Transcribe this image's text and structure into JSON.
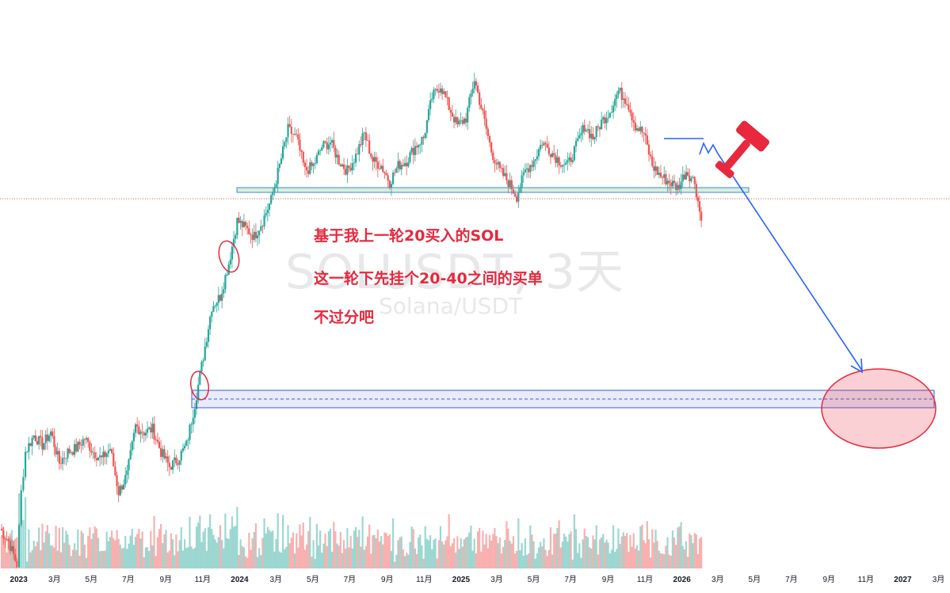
{
  "watermark": {
    "symbol": "SOLUSDT, 3天",
    "name": "Solana/USDT"
  },
  "annotations": [
    "基于我上一轮20买入的SOL",
    "这一轮下先挂个20-40之间的买单",
    "不过分吧"
  ],
  "colors": {
    "up": "#26a69a",
    "down": "#ef5350",
    "annotation": "#e8283c",
    "zone": "#3b5bdb",
    "arrow": "#2962ff"
  },
  "icons": [
    "gavel-icon"
  ],
  "chart_data": {
    "type": "candlestick",
    "symbol": "SOLUSDT",
    "interval": "3天",
    "x_axis": [
      "2023",
      "3月",
      "5月",
      "7月",
      "9月",
      "11月",
      "2024",
      "3月",
      "5月",
      "7月",
      "9月",
      "11月",
      "2025",
      "3月",
      "5月",
      "7月",
      "9月",
      "11月",
      "2026",
      "3月",
      "5月",
      "7月",
      "9月",
      "11月",
      "2027",
      "3月"
    ],
    "x_range": [
      "2022-12-01",
      "2027-03-20"
    ],
    "y_range_approx": [
      8,
      300
    ],
    "series": [
      {
        "values": [
          [
            "2022-12-01",
            12.5
          ],
          [
            "2022-12-15",
            11.5
          ],
          [
            "2022-12-29",
            9.8
          ],
          [
            "2023-01-05",
            16
          ],
          [
            "2023-01-12",
            21
          ],
          [
            "2023-01-26",
            23.5
          ],
          [
            "2023-02-09",
            22
          ],
          [
            "2023-02-23",
            24
          ],
          [
            "2023-03-09",
            19.5
          ],
          [
            "2023-03-23",
            21
          ],
          [
            "2023-04-06",
            21.5
          ],
          [
            "2023-04-20",
            23
          ],
          [
            "2023-05-04",
            21
          ],
          [
            "2023-05-18",
            20
          ],
          [
            "2023-06-01",
            21.5
          ],
          [
            "2023-06-15",
            16
          ],
          [
            "2023-06-29",
            18
          ],
          [
            "2023-07-13",
            25
          ],
          [
            "2023-07-27",
            24
          ],
          [
            "2023-08-10",
            24.5
          ],
          [
            "2023-08-24",
            21
          ],
          [
            "2023-09-07",
            19
          ],
          [
            "2023-09-21",
            20
          ],
          [
            "2023-10-05",
            22
          ],
          [
            "2023-10-19",
            29
          ],
          [
            "2023-11-02",
            40
          ],
          [
            "2023-11-16",
            56
          ],
          [
            "2023-11-30",
            60
          ],
          [
            "2023-12-14",
            75
          ],
          [
            "2023-12-28",
            100
          ],
          [
            "2024-01-11",
            95
          ],
          [
            "2024-01-25",
            90
          ],
          [
            "2024-02-08",
            100
          ],
          [
            "2024-02-22",
            115
          ],
          [
            "2024-03-07",
            145
          ],
          [
            "2024-03-21",
            185
          ],
          [
            "2024-04-04",
            175
          ],
          [
            "2024-04-18",
            140
          ],
          [
            "2024-05-02",
            145
          ],
          [
            "2024-05-16",
            165
          ],
          [
            "2024-05-30",
            170
          ],
          [
            "2024-06-13",
            150
          ],
          [
            "2024-06-27",
            140
          ],
          [
            "2024-07-11",
            155
          ],
          [
            "2024-07-25",
            180
          ],
          [
            "2024-08-08",
            150
          ],
          [
            "2024-08-22",
            145
          ],
          [
            "2024-09-05",
            130
          ],
          [
            "2024-09-19",
            145
          ],
          [
            "2024-10-03",
            150
          ],
          [
            "2024-10-17",
            165
          ],
          [
            "2024-10-31",
            175
          ],
          [
            "2024-11-14",
            230
          ],
          [
            "2024-11-28",
            250
          ],
          [
            "2024-12-12",
            215
          ],
          [
            "2024-12-26",
            190
          ],
          [
            "2025-01-09",
            200
          ],
          [
            "2025-01-23",
            260
          ],
          [
            "2025-02-06",
            205
          ],
          [
            "2025-02-20",
            160
          ],
          [
            "2025-03-06",
            140
          ],
          [
            "2025-03-20",
            130
          ],
          [
            "2025-04-03",
            118
          ],
          [
            "2025-04-17",
            140
          ],
          [
            "2025-05-01",
            150
          ],
          [
            "2025-05-15",
            170
          ],
          [
            "2025-05-29",
            160
          ],
          [
            "2025-06-12",
            150
          ],
          [
            "2025-06-26",
            145
          ],
          [
            "2025-07-10",
            165
          ],
          [
            "2025-07-24",
            190
          ],
          [
            "2025-08-07",
            175
          ],
          [
            "2025-08-21",
            195
          ],
          [
            "2025-09-04",
            210
          ],
          [
            "2025-09-18",
            240
          ],
          [
            "2025-10-02",
            225
          ],
          [
            "2025-10-16",
            190
          ],
          [
            "2025-10-30",
            180
          ],
          [
            "2025-11-13",
            145
          ],
          [
            "2025-11-27",
            135
          ],
          [
            "2025-12-11",
            130
          ],
          [
            "2025-12-25",
            125
          ],
          [
            "2026-01-08",
            140
          ],
          [
            "2026-01-22",
            130
          ],
          [
            "2026-02-02",
            100
          ]
        ]
      }
    ],
    "drawn_levels": [
      {
        "label": "resistance-band",
        "value_approx": [
          112,
          117
        ]
      },
      {
        "label": "buy-zone",
        "value_approx": [
          20,
          40
        ]
      }
    ],
    "volume": "shown",
    "grid": false,
    "legend": "none"
  }
}
